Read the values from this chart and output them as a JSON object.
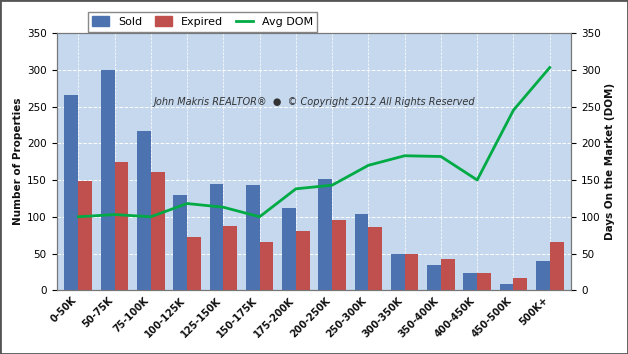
{
  "categories": [
    "0-50K",
    "50-75K",
    "75-100K",
    "100-125K",
    "125-150K",
    "150-175K",
    "175-200K",
    "200-250K",
    "250-300K",
    "300-350K",
    "350-400K",
    "400-450K",
    "450-500K",
    "500K+"
  ],
  "sold": [
    265,
    300,
    217,
    130,
    145,
    143,
    112,
    151,
    104,
    50,
    34,
    23,
    8,
    40
  ],
  "expired": [
    148,
    174,
    161,
    73,
    87,
    66,
    81,
    96,
    86,
    49,
    42,
    23,
    17,
    65
  ],
  "avg_dom": [
    100,
    103,
    100,
    118,
    113,
    100,
    138,
    143,
    170,
    183,
    182,
    150,
    245,
    303
  ],
  "sold_color": "#4C72B0",
  "expired_color": "#C0504D",
  "dom_color": "#00AA44",
  "plot_bg_color": "#C5D8EE",
  "fig_bg_color": "#FFFFFF",
  "outer_border_color": "#888888",
  "ylim_left": [
    0,
    350
  ],
  "ylim_right": [
    0,
    350
  ],
  "yticks": [
    0,
    50,
    100,
    150,
    200,
    250,
    300,
    350
  ],
  "ylabel_left": "Number of Properties",
  "ylabel_right": "Days On the Market (DOM)",
  "watermark": "John Makris REALTOR®  ●  © Copyright 2012 All Rights Reserved",
  "legend_labels": [
    "Sold",
    "Expired",
    "Avg DOM"
  ],
  "bar_width": 0.38
}
